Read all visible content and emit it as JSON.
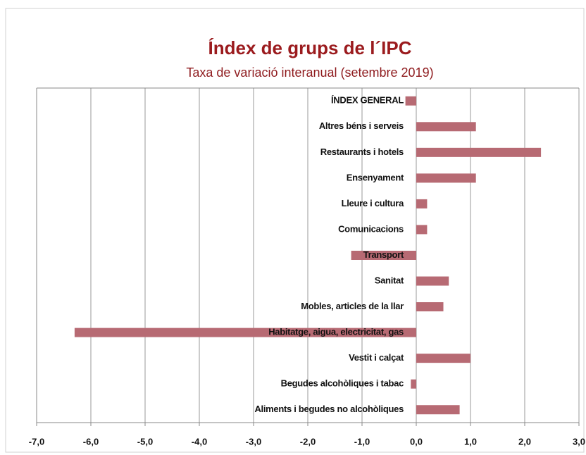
{
  "chart_data": {
    "type": "bar",
    "orientation": "horizontal",
    "title": "Índex de grups de l´IPC",
    "subtitle": "Taxa de variació interanual (setembre 2019)",
    "categories": [
      "ÍNDEX GENERAL",
      "Altres béns i serveis",
      "Restaurants i hotels",
      "Ensenyament",
      "Lleure i cultura",
      "Comunicacions",
      "Transport",
      "Sanitat",
      "Mobles, articles de la llar",
      "Habitatge, aigua, electricitat, gas",
      "Vestit i calçat",
      "Begudes alcohòliques i tabac",
      "Aliments i begudes no alcohòliques"
    ],
    "values": [
      -0.2,
      1.1,
      2.3,
      1.1,
      0.2,
      0.2,
      -1.2,
      0.6,
      0.5,
      -6.3,
      1.0,
      -0.1,
      0.8
    ],
    "color": "#b76a73",
    "xlim": [
      -7,
      3
    ],
    "xticks": [
      {
        "value": -7,
        "label": "-7,0"
      },
      {
        "value": -6,
        "label": "-6,0"
      },
      {
        "value": -5,
        "label": "-5,0"
      },
      {
        "value": -4,
        "label": "-4,0"
      },
      {
        "value": -3,
        "label": "-3,0"
      },
      {
        "value": -2,
        "label": "-2,0"
      },
      {
        "value": -1,
        "label": "-1,0"
      },
      {
        "value": 0,
        "label": "0,0"
      },
      {
        "value": 1,
        "label": "1,0"
      },
      {
        "value": 2,
        "label": "2,0"
      },
      {
        "value": 3,
        "label": "3,0"
      }
    ],
    "grid": true
  }
}
